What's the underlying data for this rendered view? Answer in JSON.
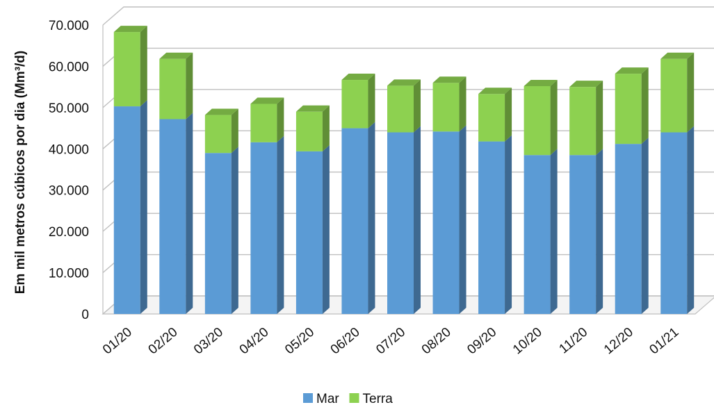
{
  "chart_data": {
    "type": "bar",
    "stacked": true,
    "style": "3d",
    "ylabel": "Em mil metros cúbicos por dia (Mm³/d)",
    "xlabel": "",
    "ylim": [
      0,
      70000
    ],
    "yticks": [
      "0",
      "10.000",
      "20.000",
      "30.000",
      "40.000",
      "50.000",
      "60.000",
      "70.000"
    ],
    "ytick_values": [
      0,
      10000,
      20000,
      30000,
      40000,
      50000,
      60000,
      70000
    ],
    "grid": true,
    "legend_position": "bottom",
    "categories": [
      "01/20",
      "02/20",
      "03/20",
      "04/20",
      "05/20",
      "06/20",
      "07/20",
      "08/20",
      "09/20",
      "10/20",
      "11/20",
      "12/20",
      "01/21"
    ],
    "series": [
      {
        "name": "Mar",
        "color": "#5b9bd5",
        "values": [
          50300,
          47200,
          39000,
          41600,
          39400,
          45000,
          44000,
          44200,
          41800,
          38500,
          38500,
          41200,
          44000
        ]
      },
      {
        "name": "Terra",
        "color": "#8dd150",
        "values": [
          18000,
          14600,
          9200,
          9300,
          9600,
          11700,
          11300,
          11800,
          11500,
          16700,
          16500,
          17000,
          17800
        ]
      }
    ]
  }
}
